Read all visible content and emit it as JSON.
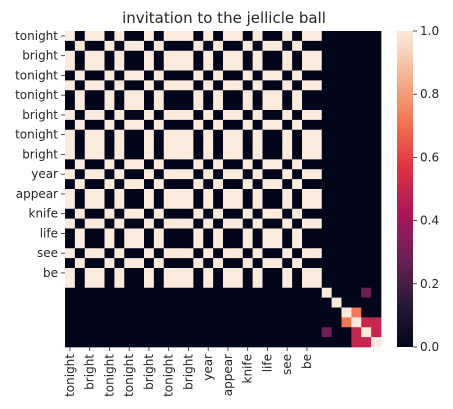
{
  "chart_data": {
    "type": "heatmap",
    "title": "invitation to the jellicle ball",
    "x_labels": [
      "tonight",
      "bright",
      "tonight",
      "tonight",
      "bright",
      "tonight",
      "bright",
      "year",
      "appear",
      "knife",
      "life",
      "see",
      "be"
    ],
    "y_labels": [
      "tonight",
      "bright",
      "tonight",
      "tonight",
      "bright",
      "tonight",
      "bright",
      "year",
      "appear",
      "knife",
      "life",
      "see",
      "be"
    ],
    "tokens": [
      "tonight",
      "bright",
      "tonight",
      "tonight",
      "bright",
      "tonight",
      "bright",
      "bright",
      "tonight",
      "bright",
      "tonight",
      "tonight",
      "tonight",
      "bright",
      "tonight",
      "bright",
      "tonight",
      "tonight",
      "bright",
      "tonight",
      "bright",
      "bright",
      "tonight",
      "bright",
      "tonight",
      "tonight",
      "year",
      "appear",
      "knife",
      "life",
      "see",
      "be"
    ],
    "tick_every": 2,
    "diagonal_value": 1.0,
    "values_note": "similarity matrix: 1.0 where tokens match, plus the off-diagonal values listed in extra_cells",
    "extra_cells": [
      {
        "row": "knife",
        "col": "life",
        "value": 0.72
      },
      {
        "row": "life",
        "col": "knife",
        "value": 0.72
      },
      {
        "row": "life",
        "col": "see",
        "value": 0.5
      },
      {
        "row": "see",
        "col": "life",
        "value": 0.5
      },
      {
        "row": "life",
        "col": "be",
        "value": 0.5
      },
      {
        "row": "be",
        "col": "life",
        "value": 0.5
      },
      {
        "row": "see",
        "col": "be",
        "value": 0.5
      },
      {
        "row": "be",
        "col": "see",
        "value": 0.5
      },
      {
        "row": "year",
        "col": "see",
        "value": 0.28
      },
      {
        "row": "see",
        "col": "year",
        "value": 0.28
      }
    ],
    "vmin": 0.0,
    "vmax": 1.0,
    "colorbar_ticks": [
      "0.0",
      "0.2",
      "0.4",
      "0.6",
      "0.8",
      "1.0"
    ],
    "colorbar_values": [
      0.0,
      0.2,
      0.4,
      0.6,
      0.8,
      1.0
    ],
    "colormap": "rocket",
    "colors": [
      "#03051a",
      "#2b1a3a",
      "#701f57",
      "#ad1759",
      "#e13342",
      "#f37651",
      "#f6b48f",
      "#faebdd"
    ]
  }
}
